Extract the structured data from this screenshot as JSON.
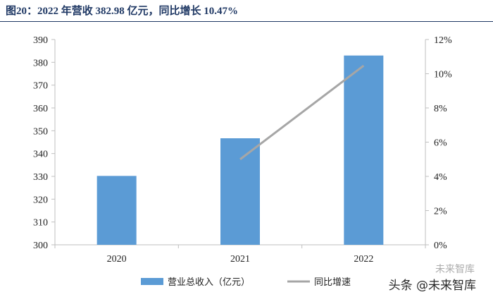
{
  "title": "图20：2022 年营收 382.98 亿元，同比增长 10.47%",
  "watermark": {
    "line1": "未来智库",
    "line2": "头条 @未来智库"
  },
  "chart_data": {
    "type": "bar",
    "categories": [
      "2020",
      "2021",
      "2022"
    ],
    "series": [
      {
        "name": "营业总收入（亿元）",
        "type": "bar",
        "axis": "left",
        "values": [
          330.2,
          346.7,
          382.98
        ],
        "color": "#5b9bd5"
      },
      {
        "name": "同比增速",
        "type": "line",
        "axis": "right",
        "values": [
          null,
          5.0,
          10.47
        ],
        "color": "#a6a6a6"
      }
    ],
    "y_left": {
      "min": 300,
      "max": 390,
      "step": 10
    },
    "y_right": {
      "min": 0,
      "max": 12,
      "step": 2,
      "unit": "%"
    },
    "legend_position": "bottom-center",
    "grid": false
  }
}
